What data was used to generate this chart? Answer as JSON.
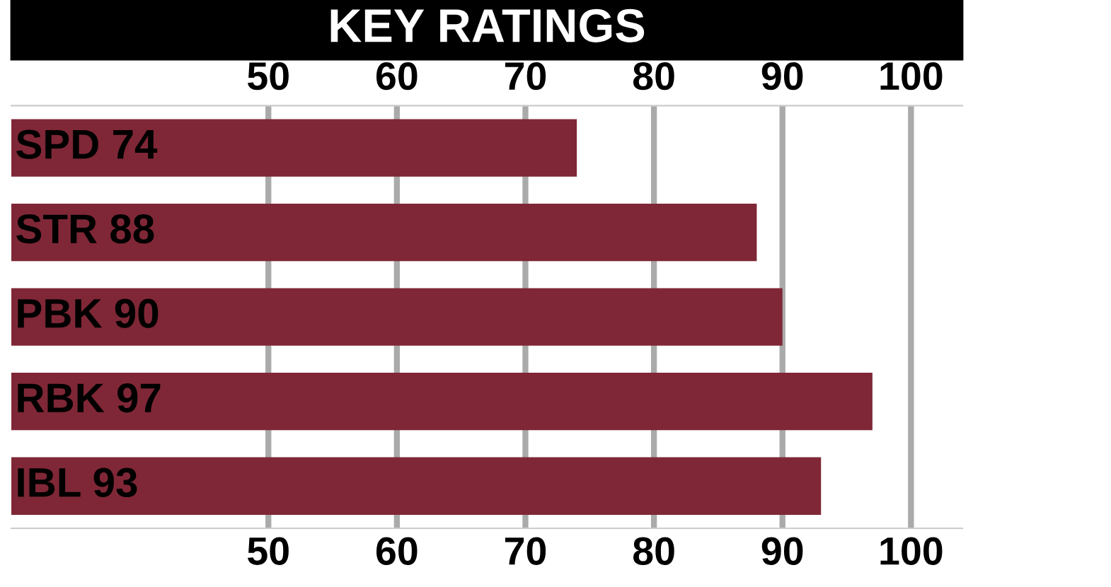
{
  "chart_data": {
    "type": "bar",
    "orientation": "horizontal",
    "title": "KEY RATINGS",
    "categories": [
      "SPD 74",
      "STR 88",
      "PBK 90",
      "RBK 97",
      "IBL 93"
    ],
    "values": [
      74,
      88,
      90,
      97,
      93
    ],
    "color": "#7f2736",
    "xlim": [
      30,
      104
    ],
    "xticks": [
      50,
      60,
      70,
      80,
      90,
      100
    ],
    "x2lim": [
      30,
      104
    ],
    "x2ticks": [
      50,
      60,
      70,
      80,
      90,
      100
    ],
    "grid": "x"
  }
}
